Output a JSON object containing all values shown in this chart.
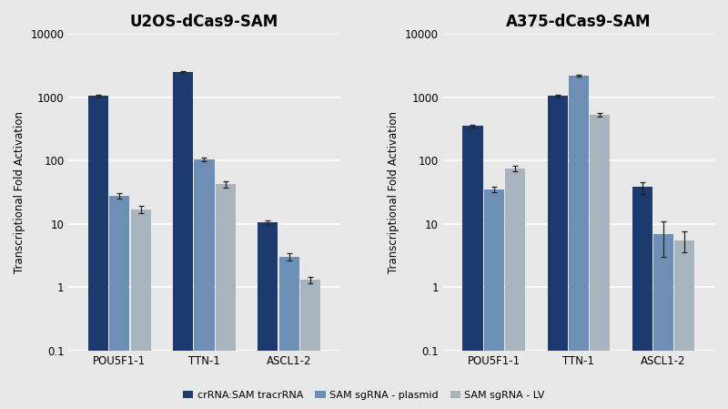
{
  "panels": [
    {
      "title": "U2OS-dCas9-SAM",
      "categories": [
        "POU5F1-1",
        "TTN-1",
        "ASCL1-2"
      ],
      "series": {
        "crRNA:SAM tracrRNA": [
          1050,
          2500,
          10.5
        ],
        "SAM sgRNA - plasmid": [
          28,
          105,
          3.0
        ],
        "SAM sgRNA - LV": [
          17,
          42,
          1.3
        ]
      },
      "errors": {
        "crRNA:SAM tracrRNA": [
          50,
          100,
          1.0
        ],
        "SAM sgRNA - plasmid": [
          3,
          8,
          0.4
        ],
        "SAM sgRNA - LV": [
          2,
          5,
          0.15
        ]
      }
    },
    {
      "title": "A375-dCas9-SAM",
      "categories": [
        "POU5F1-1",
        "TTN-1",
        "ASCL1-2"
      ],
      "series": {
        "crRNA:SAM tracrRNA": [
          350,
          1050,
          38
        ],
        "SAM sgRNA - plasmid": [
          35,
          2200,
          7
        ],
        "SAM sgRNA - LV": [
          75,
          530,
          5.5
        ]
      },
      "errors": {
        "crRNA:SAM tracrRNA": [
          15,
          50,
          8
        ],
        "SAM sgRNA - plasmid": [
          3,
          80,
          4
        ],
        "SAM sgRNA - LV": [
          8,
          30,
          2
        ]
      }
    }
  ],
  "series_names": [
    "crRNA:SAM tracrRNA",
    "SAM sgRNA - plasmid",
    "SAM sgRNA - LV"
  ],
  "colors": [
    "#1c3a6e",
    "#6d8fb5",
    "#a8b4be"
  ],
  "ylabel": "Transcriptional Fold Activation",
  "ylim": [
    0.1,
    10000
  ],
  "bar_width": 0.25,
  "background_color": "#e8e8e8",
  "plot_bg_color": "#e8e8e8",
  "grid_color": "#ffffff",
  "title_fontsize": 12,
  "axis_fontsize": 8.5,
  "legend_fontsize": 8
}
